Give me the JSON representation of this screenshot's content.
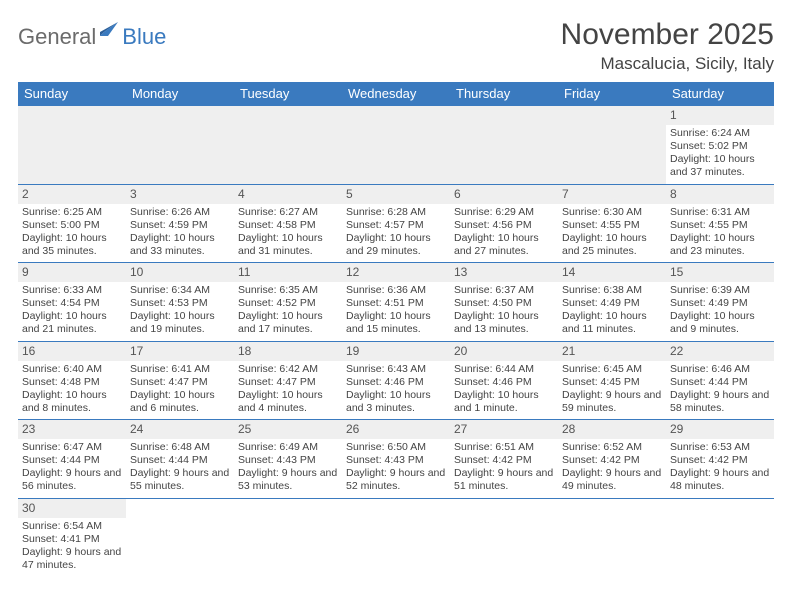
{
  "logo": {
    "part1": "General",
    "part2": "Blue"
  },
  "title": "November 2025",
  "location": "Mascalucia, Sicily, Italy",
  "colors": {
    "header_bg": "#3a7abf",
    "header_text": "#ffffff",
    "day_strip_bg": "#efefef",
    "border": "#3a7abf",
    "text": "#444444",
    "logo_gray": "#6b6b6b",
    "logo_blue": "#3a7abf",
    "page_bg": "#ffffff"
  },
  "fonts": {
    "title_size": 30,
    "location_size": 17,
    "dow_size": 13,
    "daynum_size": 12,
    "body_size": 10.5
  },
  "days_of_week": [
    "Sunday",
    "Monday",
    "Tuesday",
    "Wednesday",
    "Thursday",
    "Friday",
    "Saturday"
  ],
  "weeks": [
    [
      null,
      null,
      null,
      null,
      null,
      null,
      {
        "n": "1",
        "sunrise": "Sunrise: 6:24 AM",
        "sunset": "Sunset: 5:02 PM",
        "daylight": "Daylight: 10 hours and 37 minutes."
      }
    ],
    [
      {
        "n": "2",
        "sunrise": "Sunrise: 6:25 AM",
        "sunset": "Sunset: 5:00 PM",
        "daylight": "Daylight: 10 hours and 35 minutes."
      },
      {
        "n": "3",
        "sunrise": "Sunrise: 6:26 AM",
        "sunset": "Sunset: 4:59 PM",
        "daylight": "Daylight: 10 hours and 33 minutes."
      },
      {
        "n": "4",
        "sunrise": "Sunrise: 6:27 AM",
        "sunset": "Sunset: 4:58 PM",
        "daylight": "Daylight: 10 hours and 31 minutes."
      },
      {
        "n": "5",
        "sunrise": "Sunrise: 6:28 AM",
        "sunset": "Sunset: 4:57 PM",
        "daylight": "Daylight: 10 hours and 29 minutes."
      },
      {
        "n": "6",
        "sunrise": "Sunrise: 6:29 AM",
        "sunset": "Sunset: 4:56 PM",
        "daylight": "Daylight: 10 hours and 27 minutes."
      },
      {
        "n": "7",
        "sunrise": "Sunrise: 6:30 AM",
        "sunset": "Sunset: 4:55 PM",
        "daylight": "Daylight: 10 hours and 25 minutes."
      },
      {
        "n": "8",
        "sunrise": "Sunrise: 6:31 AM",
        "sunset": "Sunset: 4:55 PM",
        "daylight": "Daylight: 10 hours and 23 minutes."
      }
    ],
    [
      {
        "n": "9",
        "sunrise": "Sunrise: 6:33 AM",
        "sunset": "Sunset: 4:54 PM",
        "daylight": "Daylight: 10 hours and 21 minutes."
      },
      {
        "n": "10",
        "sunrise": "Sunrise: 6:34 AM",
        "sunset": "Sunset: 4:53 PM",
        "daylight": "Daylight: 10 hours and 19 minutes."
      },
      {
        "n": "11",
        "sunrise": "Sunrise: 6:35 AM",
        "sunset": "Sunset: 4:52 PM",
        "daylight": "Daylight: 10 hours and 17 minutes."
      },
      {
        "n": "12",
        "sunrise": "Sunrise: 6:36 AM",
        "sunset": "Sunset: 4:51 PM",
        "daylight": "Daylight: 10 hours and 15 minutes."
      },
      {
        "n": "13",
        "sunrise": "Sunrise: 6:37 AM",
        "sunset": "Sunset: 4:50 PM",
        "daylight": "Daylight: 10 hours and 13 minutes."
      },
      {
        "n": "14",
        "sunrise": "Sunrise: 6:38 AM",
        "sunset": "Sunset: 4:49 PM",
        "daylight": "Daylight: 10 hours and 11 minutes."
      },
      {
        "n": "15",
        "sunrise": "Sunrise: 6:39 AM",
        "sunset": "Sunset: 4:49 PM",
        "daylight": "Daylight: 10 hours and 9 minutes."
      }
    ],
    [
      {
        "n": "16",
        "sunrise": "Sunrise: 6:40 AM",
        "sunset": "Sunset: 4:48 PM",
        "daylight": "Daylight: 10 hours and 8 minutes."
      },
      {
        "n": "17",
        "sunrise": "Sunrise: 6:41 AM",
        "sunset": "Sunset: 4:47 PM",
        "daylight": "Daylight: 10 hours and 6 minutes."
      },
      {
        "n": "18",
        "sunrise": "Sunrise: 6:42 AM",
        "sunset": "Sunset: 4:47 PM",
        "daylight": "Daylight: 10 hours and 4 minutes."
      },
      {
        "n": "19",
        "sunrise": "Sunrise: 6:43 AM",
        "sunset": "Sunset: 4:46 PM",
        "daylight": "Daylight: 10 hours and 3 minutes."
      },
      {
        "n": "20",
        "sunrise": "Sunrise: 6:44 AM",
        "sunset": "Sunset: 4:46 PM",
        "daylight": "Daylight: 10 hours and 1 minute."
      },
      {
        "n": "21",
        "sunrise": "Sunrise: 6:45 AM",
        "sunset": "Sunset: 4:45 PM",
        "daylight": "Daylight: 9 hours and 59 minutes."
      },
      {
        "n": "22",
        "sunrise": "Sunrise: 6:46 AM",
        "sunset": "Sunset: 4:44 PM",
        "daylight": "Daylight: 9 hours and 58 minutes."
      }
    ],
    [
      {
        "n": "23",
        "sunrise": "Sunrise: 6:47 AM",
        "sunset": "Sunset: 4:44 PM",
        "daylight": "Daylight: 9 hours and 56 minutes."
      },
      {
        "n": "24",
        "sunrise": "Sunrise: 6:48 AM",
        "sunset": "Sunset: 4:44 PM",
        "daylight": "Daylight: 9 hours and 55 minutes."
      },
      {
        "n": "25",
        "sunrise": "Sunrise: 6:49 AM",
        "sunset": "Sunset: 4:43 PM",
        "daylight": "Daylight: 9 hours and 53 minutes."
      },
      {
        "n": "26",
        "sunrise": "Sunrise: 6:50 AM",
        "sunset": "Sunset: 4:43 PM",
        "daylight": "Daylight: 9 hours and 52 minutes."
      },
      {
        "n": "27",
        "sunrise": "Sunrise: 6:51 AM",
        "sunset": "Sunset: 4:42 PM",
        "daylight": "Daylight: 9 hours and 51 minutes."
      },
      {
        "n": "28",
        "sunrise": "Sunrise: 6:52 AM",
        "sunset": "Sunset: 4:42 PM",
        "daylight": "Daylight: 9 hours and 49 minutes."
      },
      {
        "n": "29",
        "sunrise": "Sunrise: 6:53 AM",
        "sunset": "Sunset: 4:42 PM",
        "daylight": "Daylight: 9 hours and 48 minutes."
      }
    ],
    [
      {
        "n": "30",
        "sunrise": "Sunrise: 6:54 AM",
        "sunset": "Sunset: 4:41 PM",
        "daylight": "Daylight: 9 hours and 47 minutes."
      },
      null,
      null,
      null,
      null,
      null,
      null
    ]
  ]
}
